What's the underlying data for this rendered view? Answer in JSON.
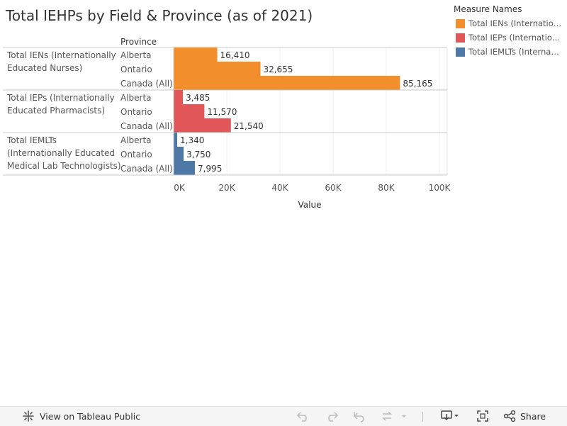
{
  "title": "Total IEHPs by Field & Province (as of 2021)",
  "legend": {
    "title": "Measure Names",
    "items": [
      {
        "label": "Total IENs (Internationally Educated Nurses)",
        "color": "#f28e2b"
      },
      {
        "label": "Total IEPs (Internationally Educated Pharmacists)",
        "color": "#e15759"
      },
      {
        "label": "Total IEMLTs (Internationally Educated Medical Lab Technologists)",
        "color": "#4e79a7"
      }
    ]
  },
  "chart_data": {
    "type": "bar",
    "orientation": "horizontal",
    "row_header": "Province",
    "xlabel": "Value",
    "xlim": [
      0,
      100000
    ],
    "x_ticks": [
      0,
      20000,
      40000,
      60000,
      80000,
      100000
    ],
    "x_tick_labels": [
      "0K",
      "20K",
      "40K",
      "60K",
      "80K",
      "100K"
    ],
    "groups": [
      {
        "name": "Total IENs (Internationally Educated Nurses)",
        "label_lines": [
          "Total IENs (Internationally",
          "Educated Nurses)"
        ],
        "color": "#f28e2b",
        "rows": [
          {
            "category": "Alberta",
            "value": 16410,
            "label": "16,410"
          },
          {
            "category": "Ontario",
            "value": 32655,
            "label": "32,655"
          },
          {
            "category": "Canada (All)",
            "value": 85165,
            "label": "85,165"
          }
        ]
      },
      {
        "name": "Total IEPs (Internationally Educated Pharmacists)",
        "label_lines": [
          "Total IEPs (Internationally",
          "Educated Pharmacists)"
        ],
        "color": "#e15759",
        "rows": [
          {
            "category": "Alberta",
            "value": 3485,
            "label": "3,485"
          },
          {
            "category": "Ontario",
            "value": 11570,
            "label": "11,570"
          },
          {
            "category": "Canada (All)",
            "value": 21540,
            "label": "21,540"
          }
        ]
      },
      {
        "name": "Total IEMLTs (Internationally Educated Medical Lab Technologists)",
        "label_lines": [
          "Total IEMLTs",
          "(Internationally Educated",
          "Medical Lab Technologists)"
        ],
        "color": "#4e79a7",
        "rows": [
          {
            "category": "Alberta",
            "value": 1340,
            "label": "1,340"
          },
          {
            "category": "Ontario",
            "value": 3750,
            "label": "3,750"
          },
          {
            "category": "Canada (All)",
            "value": 7995,
            "label": "7,995"
          }
        ]
      }
    ]
  },
  "toolbar": {
    "view_label": "View on Tableau Public",
    "share_label": "Share"
  }
}
